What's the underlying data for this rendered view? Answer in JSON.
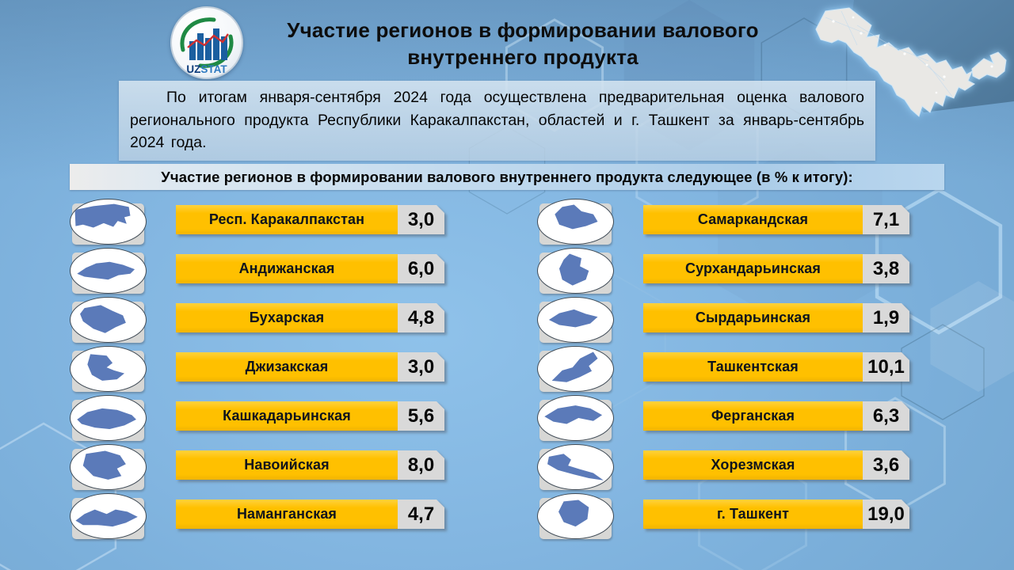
{
  "header": {
    "title": "Участие регионов в формировании валового внутреннего продукта",
    "logo": {
      "uz": "UZ",
      "stat": "STAT",
      "name": "uzstat-logo"
    }
  },
  "intro": {
    "text": "По итогам января-сентября 2024 года осуществлена предварительная оценка валового регионального продукта Республики Каракалпакстан, областей и г. Ташкент за январь-сентябрь 2024 года."
  },
  "subtitle": "Участие регионов в формировании валового внутреннего продукта следующее (в % к итогу):",
  "columns": {
    "left": [
      {
        "name": "Респ. Каракалпакстан",
        "value": "3,0"
      },
      {
        "name": "Андижанская",
        "value": "6,0"
      },
      {
        "name": "Бухарская",
        "value": "4,8"
      },
      {
        "name": "Джизакская",
        "value": "3,0"
      },
      {
        "name": "Кашкадарьинская",
        "value": "5,6"
      },
      {
        "name": "Навоийская",
        "value": "8,0"
      },
      {
        "name": "Наманганская",
        "value": "4,7"
      }
    ],
    "right": [
      {
        "name": "Самаркандская",
        "value": "7,1"
      },
      {
        "name": "Сурхандарьинская",
        "value": "3,8"
      },
      {
        "name": "Сырдарьинская",
        "value": "1,9"
      },
      {
        "name": "Ташкентская",
        "value": "10,1"
      },
      {
        "name": "Ферганская",
        "value": "6,3"
      },
      {
        "name": "Хорезмская",
        "value": "3,6"
      },
      {
        "name": "г. Ташкент",
        "value": "19,0"
      }
    ]
  },
  "chart_data": {
    "type": "table",
    "title": "Участие регионов в формировании валового внутреннего продукта следующее (в % к итогу):",
    "unit": "% к итогу",
    "categories": [
      "Респ. Каракалпакстан",
      "Андижанская",
      "Бухарская",
      "Джизакская",
      "Кашкадарьинская",
      "Навоийская",
      "Наманганская",
      "Самаркандская",
      "Сурхандарьинская",
      "Сырдарьинская",
      "Ташкентская",
      "Ферганская",
      "Хорезмская",
      "г. Ташкент"
    ],
    "values": [
      3.0,
      6.0,
      4.8,
      3.0,
      5.6,
      8.0,
      4.7,
      7.1,
      3.8,
      1.9,
      10.1,
      6.3,
      3.6,
      19.0
    ],
    "period": "январь-сентябрь 2024"
  },
  "colors": {
    "accent_yellow": "#FFC000",
    "value_box_gray": "#D9D9D9",
    "region_shape_blue": "#5B7AB9",
    "background_blue": "#7FB2DC",
    "corner_panel_blue": "#4E7897"
  }
}
